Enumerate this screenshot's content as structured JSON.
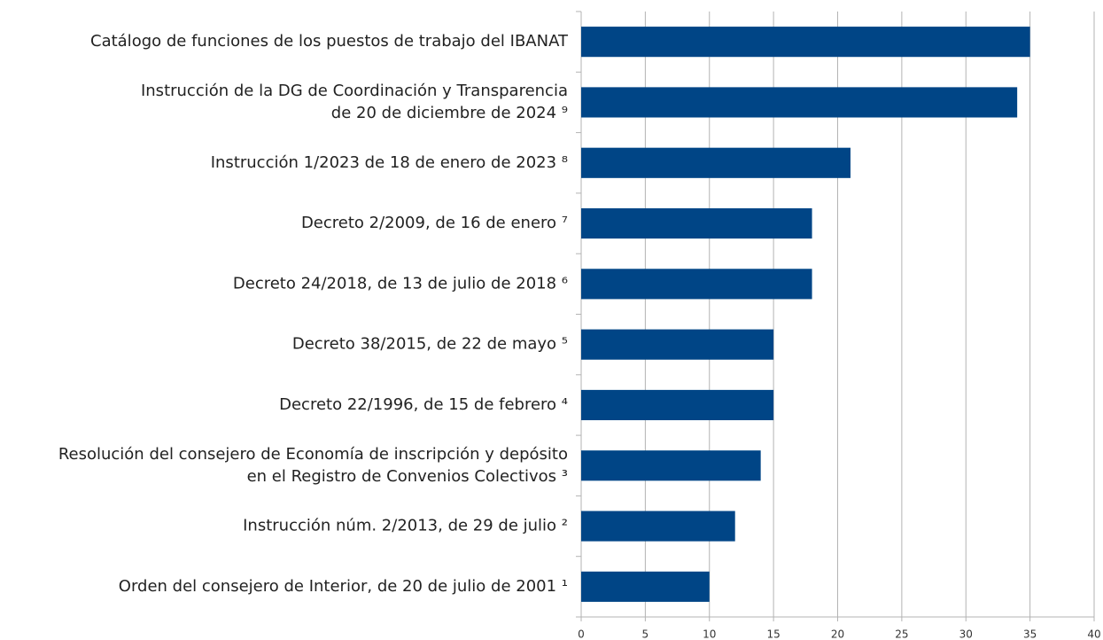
{
  "chart_data": {
    "type": "hbar",
    "categories": [
      "Catálogo de funciones de los puestos de trabajo del IBANAT",
      "Instrucción de la DG de Coordinación y Transparencia\nde 20 de diciembre de 2024 ⁹",
      "Instrucción 1/2023 de 18 de enero de 2023 ⁸",
      "Decreto 2/2009, de 16 de enero ⁷",
      "Decreto 24/2018, de 13 de julio de 2018 ⁶",
      "Decreto 38/2015, de 22 de mayo ⁵",
      "Decreto 22/1996, de 15 de febrero ⁴",
      "Resolución del consejero de Economía de inscripción y depósito\nen el Registro de Convenios Colectivos ³",
      "Instrucción núm. 2/2013, de 29 de julio ²",
      "Orden del consejero de Interior, de 20 de julio de 2001 ¹"
    ],
    "values": [
      35,
      34,
      21,
      18,
      18,
      15,
      15,
      14,
      12,
      10
    ],
    "color": "#004586",
    "xlim": [
      0,
      40
    ],
    "xticks": [
      0,
      5,
      10,
      15,
      20,
      25,
      30,
      35,
      40
    ],
    "grid": true
  }
}
